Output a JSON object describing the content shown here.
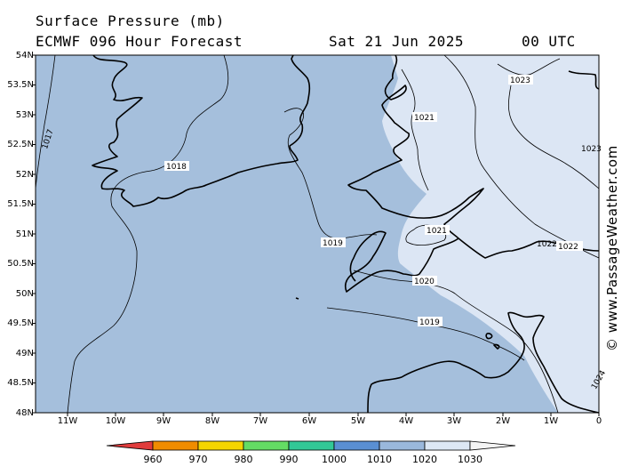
{
  "header": {
    "title": "Surface Pressure (mb)",
    "model": "ECMWF 096 Hour Forecast",
    "date": "Sat 21 Jun 2025",
    "time": "00 UTC"
  },
  "credit": "© www.PassageWeather.com",
  "lat_labels": [
    "54N",
    "53.5N",
    "53N",
    "52.5N",
    "52N",
    "51.5N",
    "51N",
    "50.5N",
    "50N",
    "49.5N",
    "49N",
    "48.5N",
    "48N"
  ],
  "lon_labels": [
    "11W",
    "10W",
    "9W",
    "8W",
    "7W",
    "6W",
    "5W",
    "4W",
    "3W",
    "2W",
    "1W",
    "0"
  ],
  "legend": {
    "labels": [
      "960",
      "970",
      "980",
      "990",
      "1000",
      "1010",
      "1020",
      "1030"
    ],
    "colors": [
      "#e03c3c",
      "#f08c00",
      "#f5d500",
      "#64dc64",
      "#32c896",
      "#5a8fd2",
      "#9ab8dc",
      "#dde8f5"
    ]
  },
  "isobar_labels": [
    "1017",
    "1018",
    "1019",
    "1019",
    "1020",
    "1021",
    "1021",
    "1022",
    "1023",
    "1023",
    "1022",
    "1024"
  ],
  "colors": {
    "sea_low": "#a5bfdc",
    "high": "#dce6f4",
    "contour": "#000000",
    "coast": "#000000"
  }
}
